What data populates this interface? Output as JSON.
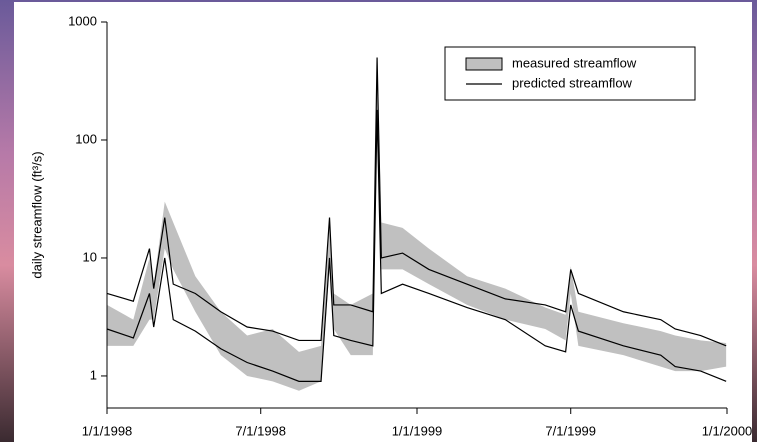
{
  "chart_data": {
    "type": "band-line",
    "y_label": "daily streamflow (ft³/s)",
    "log_y": true,
    "x": [
      "1/1/1998",
      "2/1/1998",
      "2/20/1998",
      "2/25/1998",
      "3/10/1998",
      "3/20/1998",
      "4/15/1998",
      "5/15/1998",
      "6/15/1998",
      "7/15/1998",
      "8/15/1998",
      "9/10/1998",
      "9/20/1998",
      "9/25/1998",
      "10/15/1998",
      "11/10/1998",
      "11/15/1998",
      "11/20/1998",
      "12/15/1998",
      "1/15/1999",
      "3/1/1999",
      "4/15/1999",
      "6/1/1999",
      "6/25/1999",
      "7/1/1999",
      "7/10/1999",
      "9/1/1999",
      "10/15/1999",
      "11/1/1999",
      "12/1/1999",
      "12/31/1999"
    ],
    "series": [
      {
        "name": "measured streamflow",
        "color": "#c0c0c0",
        "lower": [
          1.8,
          1.8,
          3,
          3,
          12,
          8,
          3.5,
          1.5,
          1,
          0.9,
          0.75,
          0.9,
          8,
          2.5,
          1.5,
          1.5,
          100,
          8,
          8,
          6,
          4,
          3,
          2.5,
          2,
          5,
          1.8,
          1.5,
          1.2,
          1.1,
          1.1,
          1.2
        ],
        "upper": [
          4,
          3,
          10,
          6,
          30,
          20,
          7,
          3.5,
          2.2,
          2.5,
          1.6,
          1.8,
          20,
          5,
          4,
          5,
          500,
          20,
          18,
          12,
          7,
          5.5,
          3.8,
          3.3,
          8.5,
          3.5,
          2.8,
          2.4,
          2.2,
          2,
          1.9
        ]
      },
      {
        "name": "predicted streamflow",
        "color": "#000000",
        "lower": [
          2.5,
          2.1,
          5,
          2.6,
          10,
          3,
          2.4,
          1.7,
          1.3,
          1.1,
          0.9,
          0.9,
          10,
          2.2,
          2,
          1.8,
          180,
          5,
          6,
          5,
          3.8,
          3,
          1.8,
          1.6,
          4,
          2.4,
          1.8,
          1.5,
          1.2,
          1.1,
          0.9
        ],
        "upper": [
          5,
          4.3,
          12,
          5.5,
          22,
          6,
          5,
          3.5,
          2.6,
          2.4,
          2,
          2,
          22,
          4,
          4,
          3.5,
          500,
          10,
          11,
          8,
          6,
          4.5,
          4,
          3.5,
          8,
          5,
          3.5,
          3,
          2.5,
          2.2,
          1.8
        ]
      }
    ],
    "xlim": [
      "1/1/1998",
      "1/1/2000"
    ],
    "xticks": [
      "1/1/1998",
      "7/1/1998",
      "1/1/1999",
      "7/1/1999",
      "1/1/2000"
    ],
    "ylim": [
      0.535,
      1000
    ],
    "yticks": [
      1,
      10,
      100,
      1000
    ]
  }
}
